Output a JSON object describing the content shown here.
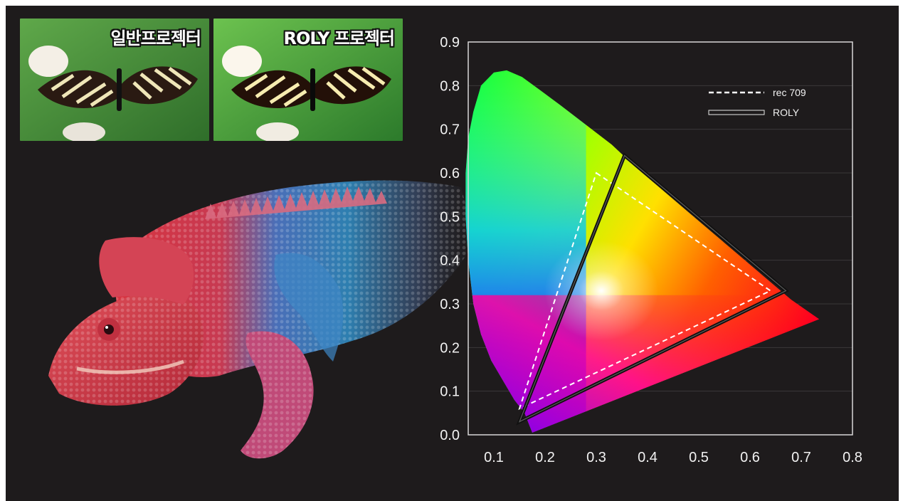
{
  "thumbnails": [
    {
      "label": "일반프로젝터"
    },
    {
      "label": "ROLY 프로젝터"
    }
  ],
  "chart_data": {
    "type": "scatter",
    "title": "",
    "xlabel": "",
    "ylabel": "",
    "xlim": [
      0.05,
      0.8
    ],
    "ylim": [
      0.0,
      0.9
    ],
    "x_ticks": [
      "0.1",
      "0.2",
      "0.3",
      "0.4",
      "0.5",
      "0.6",
      "0.7",
      "0.8"
    ],
    "y_ticks": [
      "0.0",
      "0.1",
      "0.2",
      "0.3",
      "0.4",
      "0.5",
      "0.6",
      "0.7",
      "0.8",
      "0.9"
    ],
    "grid": "horizontal",
    "legend_position": "top-right",
    "locus": [
      [
        0.175,
        0.005
      ],
      [
        0.17,
        0.02
      ],
      [
        0.16,
        0.05
      ],
      [
        0.14,
        0.08
      ],
      [
        0.12,
        0.12
      ],
      [
        0.095,
        0.17
      ],
      [
        0.075,
        0.23
      ],
      [
        0.06,
        0.3
      ],
      [
        0.05,
        0.4
      ],
      [
        0.045,
        0.5
      ],
      [
        0.045,
        0.6
      ],
      [
        0.05,
        0.68
      ],
      [
        0.06,
        0.74
      ],
      [
        0.075,
        0.8
      ],
      [
        0.1,
        0.83
      ],
      [
        0.125,
        0.835
      ],
      [
        0.155,
        0.82
      ],
      [
        0.19,
        0.79
      ],
      [
        0.23,
        0.755
      ],
      [
        0.28,
        0.71
      ],
      [
        0.33,
        0.665
      ],
      [
        0.38,
        0.61
      ],
      [
        0.43,
        0.56
      ],
      [
        0.48,
        0.51
      ],
      [
        0.53,
        0.46
      ],
      [
        0.58,
        0.41
      ],
      [
        0.63,
        0.36
      ],
      [
        0.68,
        0.31
      ],
      [
        0.735,
        0.265
      ]
    ],
    "purple_line_end": [
      0.175,
      0.005
    ],
    "series": [
      {
        "name": "rec 709",
        "style": "dashed",
        "color": "#ffffff",
        "points": [
          [
            0.3,
            0.6
          ],
          [
            0.64,
            0.33
          ],
          [
            0.15,
            0.06
          ]
        ]
      },
      {
        "name": "ROLY",
        "style": "double",
        "color": "#111111",
        "points": [
          [
            0.355,
            0.64
          ],
          [
            0.67,
            0.33
          ],
          [
            0.15,
            0.03
          ]
        ]
      }
    ]
  }
}
